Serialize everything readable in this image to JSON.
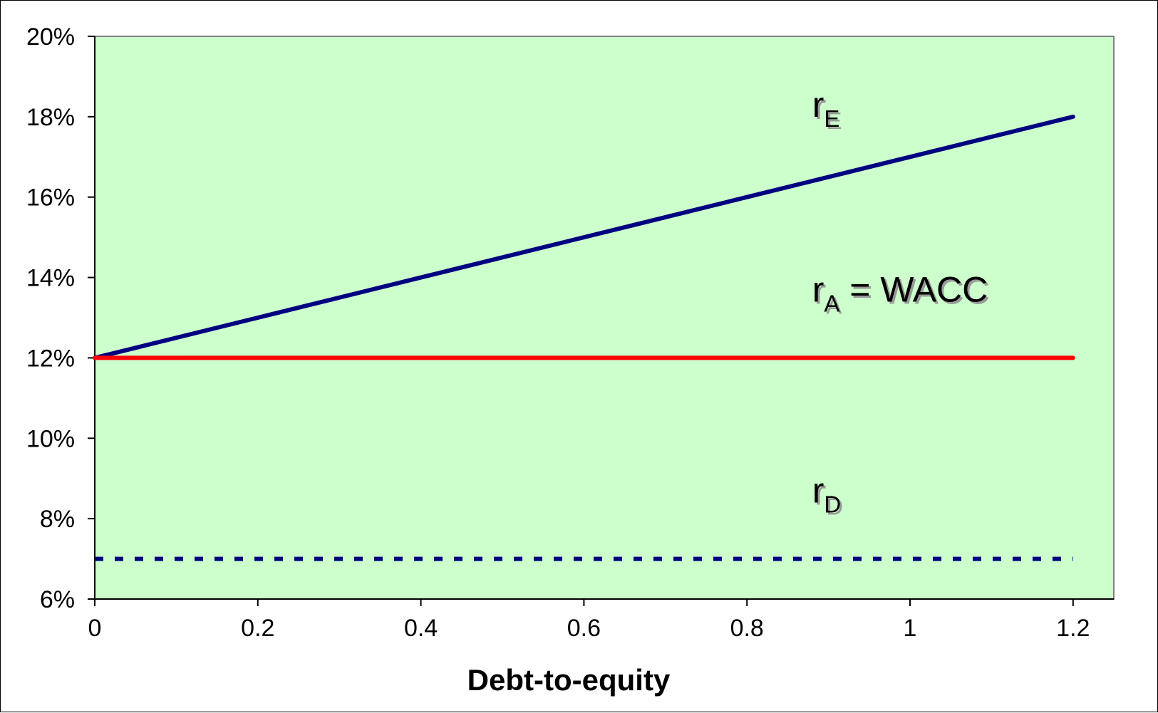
{
  "chart_data": {
    "type": "line",
    "xlabel": "Debt-to-equity",
    "ylabel": "",
    "xlim": [
      0,
      1.25
    ],
    "ylim": [
      6,
      20
    ],
    "x_ticks": [
      0,
      0.2,
      0.4,
      0.6,
      0.8,
      1,
      1.2
    ],
    "x_tick_labels": [
      "0",
      "0.2",
      "0.4",
      "0.6",
      "0.8",
      "1",
      "1.2"
    ],
    "y_ticks": [
      6,
      8,
      10,
      12,
      14,
      16,
      18,
      20
    ],
    "y_tick_labels": [
      "6%",
      "8%",
      "10%",
      "12%",
      "14%",
      "16%",
      "18%",
      "20%"
    ],
    "grid": false,
    "plot_background": "#ccffcc",
    "series": [
      {
        "name": "rE",
        "label_main": "r",
        "label_sub": "E",
        "label_suffix": "",
        "style": "solid",
        "color": "#000080",
        "x": [
          0,
          0.2,
          0.4,
          0.6,
          0.8,
          1,
          1.2
        ],
        "y": [
          12,
          13,
          14,
          15,
          16,
          17,
          18
        ],
        "label_at": [
          0.88,
          18
        ]
      },
      {
        "name": "rA = WACC",
        "label_main": "r",
        "label_sub": "A",
        "label_suffix": " = WACC",
        "style": "solid",
        "color": "#ff0000",
        "x": [
          0,
          1.2
        ],
        "y": [
          12,
          12
        ],
        "label_at": [
          0.88,
          13.4
        ]
      },
      {
        "name": "rD",
        "label_main": "r",
        "label_sub": "D",
        "label_suffix": "",
        "style": "dashed",
        "color": "#000080",
        "x": [
          0,
          1.2
        ],
        "y": [
          7,
          7
        ],
        "label_at": [
          0.88,
          8.4
        ]
      }
    ]
  }
}
